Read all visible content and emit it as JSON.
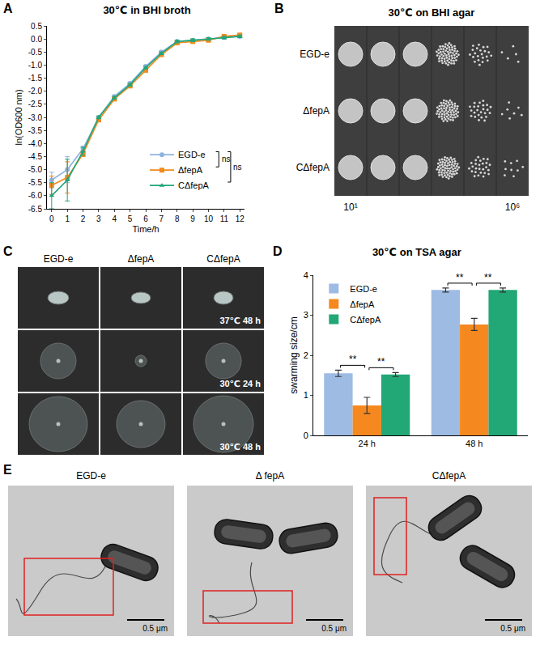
{
  "chart_data": [
    {
      "panel_label": "A",
      "type": "line",
      "title": "30℃ in BHI broth",
      "x_label": "Time/h",
      "y_label": "ln(OD600 nm)",
      "x": [
        0,
        1,
        2,
        3,
        4,
        5,
        6,
        7,
        8,
        9,
        10,
        11,
        12
      ],
      "series": [
        {
          "name": "EGD-e",
          "color": "#8fb4e0",
          "marker": "circle",
          "line_style": "solid",
          "values": [
            -5.4,
            -5.0,
            -4.2,
            -3.0,
            -2.2,
            -1.7,
            -1.05,
            -0.5,
            -0.1,
            -0.05,
            0.0,
            0.05,
            0.1
          ],
          "errors": [
            0.3,
            0.5,
            0.1,
            0.05,
            0.05,
            0.05,
            0.05,
            0.05,
            0.05,
            0.05,
            0.05,
            0.05,
            0.05
          ]
        },
        {
          "name": "ΔfepA",
          "color": "#f28a1e",
          "marker": "square",
          "line_style": "solid",
          "values": [
            -5.6,
            -5.3,
            -4.4,
            -3.1,
            -2.3,
            -1.8,
            -1.2,
            -0.6,
            -0.15,
            -0.1,
            -0.05,
            0.1,
            0.15
          ],
          "errors": [
            0.35,
            0.6,
            0.1,
            0.05,
            0.05,
            0.05,
            0.05,
            0.05,
            0.05,
            0.05,
            0.05,
            0.05,
            0.05
          ]
        },
        {
          "name": "CΔfepA",
          "color": "#1fa67a",
          "marker": "triangle-up",
          "line_style": "solid",
          "values": [
            -6.0,
            -5.4,
            -4.3,
            -3.0,
            -2.25,
            -1.75,
            -1.1,
            -0.55,
            -0.1,
            -0.05,
            0.0,
            0.05,
            0.1
          ],
          "errors": [
            0.5,
            0.8,
            0.15,
            0.05,
            0.05,
            0.05,
            0.05,
            0.05,
            0.05,
            0.05,
            0.05,
            0.05,
            0.05
          ]
        }
      ],
      "xlim": [
        -0.3,
        12.3
      ],
      "xticks": [
        0,
        1,
        2,
        3,
        4,
        5,
        6,
        7,
        8,
        9,
        10,
        11,
        12
      ],
      "ylim": [
        -6.5,
        0.5
      ],
      "yticks": [
        {
          "value": -6.5,
          "label": "-6.5"
        },
        {
          "value": -6,
          "label": "-6.0"
        },
        {
          "value": -5.5,
          "label": "-5.5"
        },
        {
          "value": -5,
          "label": "-5.0"
        },
        {
          "value": -4.5,
          "label": "-4.5"
        },
        {
          "value": -4,
          "label": "-4.0"
        },
        {
          "value": -3.5,
          "label": "-3.5"
        },
        {
          "value": -3,
          "label": "-3.0"
        },
        {
          "value": -2.5,
          "label": "-2.5"
        },
        {
          "value": -2,
          "label": "-2.0"
        },
        {
          "value": -1.5,
          "label": "-1.5"
        },
        {
          "value": -1,
          "label": "-1.0"
        },
        {
          "value": -0.5,
          "label": "-0.5"
        },
        {
          "value": 0,
          "label": "0.0"
        },
        {
          "value": 0.5,
          "label": "0.5"
        }
      ],
      "grid": false,
      "legend": "bottom-right",
      "annotations": [
        {
          "text": "ns",
          "pair": [
            "EGD-e",
            "ΔfepA"
          ]
        },
        {
          "text": "ns",
          "pair": [
            "EGD-e",
            "CΔfepA"
          ]
        }
      ]
    },
    {
      "panel_label": "D",
      "type": "bar",
      "title": "30℃ on TSA agar",
      "y_label": "swarming size/cm",
      "categories": [
        "24 h",
        "48 h"
      ],
      "series": [
        {
          "name": "EGD-e",
          "color": "#9dbbe3",
          "values": [
            1.55,
            3.63
          ],
          "errors": [
            0.08,
            0.05
          ]
        },
        {
          "name": "ΔfepA",
          "color": "#f5891f",
          "values": [
            0.75,
            2.77
          ],
          "errors": [
            0.2,
            0.15
          ]
        },
        {
          "name": "CΔfepA",
          "color": "#22a777",
          "values": [
            1.52,
            3.63
          ],
          "errors": [
            0.05,
            0.05
          ]
        }
      ],
      "ylim": [
        0,
        4
      ],
      "yticks": [
        0,
        1,
        2,
        3,
        4
      ],
      "grid": false,
      "legend": "top-left",
      "annotations": [
        {
          "text": "**",
          "category": "24 h",
          "pair": [
            "EGD-e",
            "ΔfepA"
          ]
        },
        {
          "text": "**",
          "category": "24 h",
          "pair": [
            "ΔfepA",
            "CΔfepA"
          ]
        },
        {
          "text": "**",
          "category": "48 h",
          "pair": [
            "EGD-e",
            "ΔfepA"
          ]
        },
        {
          "text": "**",
          "category": "48 h",
          "pair": [
            "ΔfepA",
            "CΔfepA"
          ]
        }
      ]
    }
  ],
  "panel_B": {
    "panel_label": "B",
    "title": "30℃ on BHI agar",
    "rows": [
      "EGD-e",
      "ΔfepA",
      "CΔfepA"
    ],
    "dilution_start": "10¹",
    "dilution_end": "10⁶"
  },
  "panel_C": {
    "panel_label": "C",
    "columns": [
      "EGD-e",
      "ΔfepA",
      "CΔfepA"
    ],
    "rows": [
      "37℃ 48 h",
      "30℃ 24 h",
      "30℃ 48 h"
    ]
  },
  "panel_E": {
    "panel_label": "E",
    "images": [
      {
        "label": "EGD-e",
        "scale_bar": "0.5 μm"
      },
      {
        "label": "Δ fepA",
        "scale_bar": "0.5 μm"
      },
      {
        "label": "CΔfepA",
        "scale_bar": "0.5 μm"
      }
    ]
  }
}
